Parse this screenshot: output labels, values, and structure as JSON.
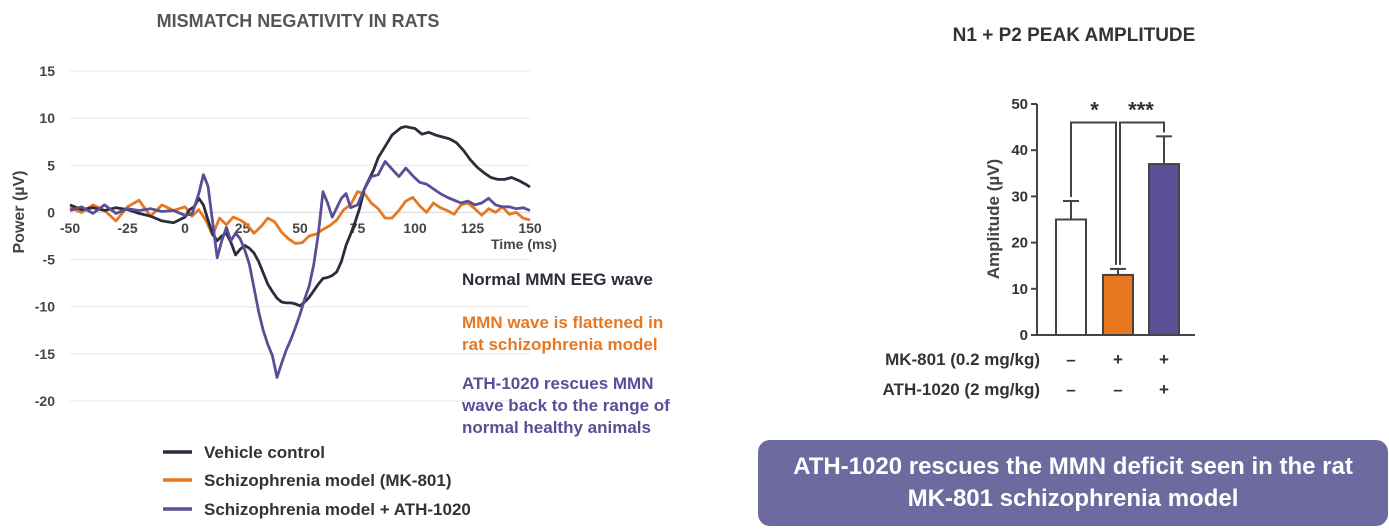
{
  "chart_data": [
    {
      "type": "line",
      "title": "MISMATCH NEGATIVITY IN RATS",
      "xlabel": "Time (ms)",
      "ylabel": "Power (µV)",
      "xlim": [
        -50,
        150
      ],
      "ylim": [
        -20,
        15
      ],
      "xticks": [
        "-50",
        "-25",
        "0",
        "25",
        "50",
        "75",
        "100",
        "125",
        "150"
      ],
      "yticks": [
        "15",
        "10",
        "5",
        "0",
        "-5",
        "-10",
        "-15",
        "-20"
      ],
      "grid": true,
      "legend_position": "bottom-left",
      "series": [
        {
          "name": "Vehicle control",
          "color": "#2b2c3c",
          "x": [
            -50,
            -45,
            -40,
            -35,
            -30,
            -25,
            -20,
            -15,
            -10,
            -5,
            0,
            2,
            4,
            6,
            8,
            10,
            12,
            14,
            16,
            18,
            20,
            22,
            24,
            26,
            28,
            30,
            32,
            34,
            36,
            38,
            40,
            42,
            44,
            46,
            48,
            50,
            52,
            54,
            56,
            58,
            60,
            62,
            64,
            66,
            68,
            70,
            72,
            74,
            76,
            78,
            80,
            82,
            84,
            86,
            88,
            90,
            92,
            94,
            96,
            98,
            100,
            103,
            106,
            109,
            112,
            115,
            118,
            121,
            124,
            127,
            130,
            133,
            136,
            139,
            142,
            145,
            148,
            150
          ],
          "values": [
            0.8,
            0.3,
            0.5,
            0.2,
            0.5,
            0.3,
            -0.1,
            -0.4,
            -0.9,
            -1.1,
            -0.5,
            0.3,
            0.6,
            1.5,
            0.8,
            -0.8,
            -2.3,
            -3.0,
            -2.5,
            -2.2,
            -3.2,
            -4.5,
            -3.9,
            -3.5,
            -3.8,
            -4.3,
            -5.2,
            -6.4,
            -7.6,
            -8.4,
            -9.1,
            -9.5,
            -9.6,
            -9.6,
            -9.7,
            -9.9,
            -9.5,
            -9.0,
            -8.3,
            -7.6,
            -7.0,
            -6.9,
            -6.7,
            -6.3,
            -5.2,
            -3.5,
            -2.3,
            -1.0,
            0.5,
            2.5,
            3.5,
            4.5,
            5.8,
            6.6,
            7.4,
            8.2,
            8.6,
            9.0,
            9.1,
            9.0,
            8.9,
            8.3,
            8.5,
            8.2,
            8.0,
            7.8,
            7.4,
            6.6,
            5.6,
            4.8,
            4.2,
            3.7,
            3.5,
            3.5,
            3.7,
            3.4,
            3.0,
            2.7
          ]
        },
        {
          "name": "Schizophrenia model (MK-801)",
          "color": "#e87722",
          "x": [
            -50,
            -45,
            -40,
            -35,
            -30,
            -25,
            -20,
            -15,
            -10,
            -5,
            0,
            3,
            6,
            9,
            12,
            15,
            18,
            21,
            24,
            27,
            30,
            33,
            36,
            39,
            42,
            45,
            48,
            51,
            54,
            57,
            60,
            63,
            66,
            69,
            72,
            75,
            78,
            81,
            84,
            87,
            90,
            93,
            96,
            99,
            102,
            105,
            108,
            111,
            114,
            117,
            120,
            123,
            126,
            129,
            132,
            135,
            138,
            141,
            144,
            147,
            150
          ],
          "values": [
            0.5,
            0.0,
            0.8,
            0.2,
            -0.9,
            0.6,
            1.3,
            -0.4,
            0.8,
            0.2,
            0.6,
            -0.4,
            0.3,
            -0.8,
            -2.4,
            -0.6,
            -1.3,
            -0.5,
            -0.8,
            -1.3,
            -2.2,
            -1.5,
            -0.6,
            -1.0,
            -2.1,
            -2.8,
            -3.3,
            -3.2,
            -2.5,
            -2.3,
            -1.8,
            -1.4,
            -0.8,
            0.3,
            0.8,
            2.2,
            2.0,
            1.0,
            0.4,
            -0.6,
            -0.6,
            0.2,
            1.2,
            1.6,
            0.7,
            0.0,
            1.0,
            0.5,
            0.2,
            -0.2,
            0.8,
            1.0,
            0.4,
            -0.3,
            0.4,
            0.0,
            0.6,
            -0.2,
            0.0,
            -0.6,
            -0.8
          ]
        },
        {
          "name": "Schizophrenia model + ATH-1020",
          "color": "#5a4f96",
          "x": [
            -50,
            -45,
            -40,
            -35,
            -30,
            -25,
            -20,
            -15,
            -10,
            -5,
            -3,
            0,
            3,
            6,
            8,
            10,
            12,
            14,
            16,
            18,
            20,
            22,
            24,
            26,
            28,
            30,
            32,
            34,
            36,
            38,
            40,
            42,
            44,
            46,
            48,
            50,
            52,
            54,
            56,
            58,
            60,
            62,
            64,
            66,
            68,
            70,
            72,
            75,
            78,
            81,
            84,
            87,
            90,
            93,
            96,
            99,
            102,
            105,
            108,
            111,
            114,
            117,
            120,
            123,
            126,
            129,
            132,
            135,
            138,
            141,
            144,
            147,
            150
          ],
          "values": [
            0.2,
            0.6,
            -0.1,
            0.8,
            -0.1,
            0.4,
            0.2,
            0.4,
            0.1,
            0.2,
            0.0,
            -0.3,
            -0.2,
            2.0,
            4.0,
            2.8,
            -1.0,
            -4.8,
            -3.0,
            -1.6,
            -3.0,
            -2.2,
            -2.8,
            -4.0,
            -5.5,
            -8.0,
            -10.5,
            -12.5,
            -14.0,
            -15.2,
            -17.5,
            -16.0,
            -14.6,
            -13.5,
            -12.2,
            -10.8,
            -9.2,
            -7.8,
            -5.5,
            -2.2,
            2.2,
            1.0,
            -0.5,
            0.5,
            1.5,
            2.0,
            0.5,
            0.8,
            2.5,
            3.8,
            4.0,
            5.4,
            4.6,
            3.8,
            4.7,
            3.9,
            3.2,
            3.0,
            2.5,
            2.0,
            1.6,
            1.3,
            1.0,
            1.2,
            0.8,
            1.0,
            1.5,
            0.8,
            0.6,
            0.6,
            0.4,
            0.5,
            0.2
          ]
        }
      ],
      "annotations": [
        {
          "text": "Normal MMN EEG wave",
          "color": "#2b2c3c"
        },
        {
          "text": "MMN wave is flattened in\nrat schizophrenia model",
          "color": "#e87722"
        },
        {
          "text": "ATH-1020 rescues MMN\nwave back to the range of\nnormal healthy animals",
          "color": "#5a4f96"
        }
      ]
    },
    {
      "type": "bar",
      "title": "N1 + P2 PEAK AMPLITUDE",
      "ylabel": "Amplitude (µV)",
      "ylim": [
        0,
        50
      ],
      "yticks": [
        "50",
        "40",
        "30",
        "20",
        "10",
        "0"
      ],
      "values": [
        25,
        13,
        37
      ],
      "errors": [
        4,
        1.3,
        6
      ],
      "colors": [
        "#ffffff",
        "#e87722",
        "#5a4f96"
      ],
      "row_labels": [
        "MK-801 (0.2 mg/kg)",
        "ATH-1020 (2 mg/kg)"
      ],
      "conditions": [
        [
          "–",
          "+",
          "+"
        ],
        [
          "–",
          "–",
          "+"
        ]
      ],
      "significance": [
        "*",
        "***"
      ]
    }
  ],
  "banner": "ATH-1020 rescues the MMN deficit seen in the rat MK-801 schizophrenia model"
}
